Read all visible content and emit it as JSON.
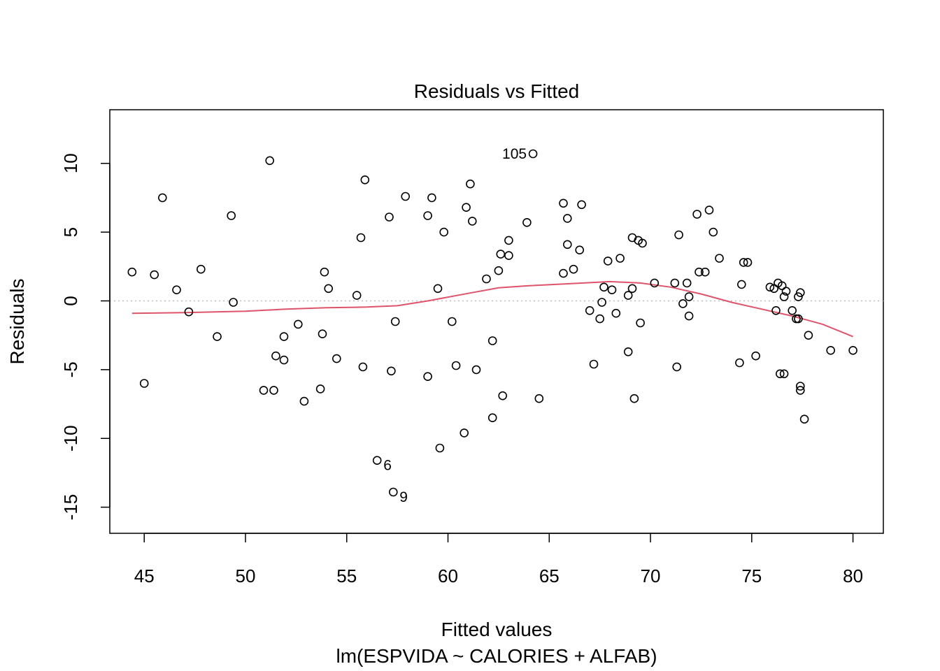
{
  "chart_data": {
    "type": "scatter",
    "title": "Residuals vs Fitted",
    "xlabel": "Fitted values",
    "ylabel": "Residuals",
    "subtitle": "lm(ESPVIDA ~ CALORIES + ALFAB)",
    "xlim": [
      43.3,
      81.5
    ],
    "ylim": [
      -16.9,
      13.9
    ],
    "x_ticks": [
      45,
      50,
      55,
      60,
      65,
      70,
      75,
      80
    ],
    "y_ticks": [
      -15,
      -10,
      -5,
      0,
      5,
      10
    ],
    "reference_line": {
      "y": 0,
      "style": "dotted",
      "color": "#bebebe"
    },
    "point_color": "#000000",
    "smooth_color": "#df536b",
    "points": [
      [
        44.4,
        2.1
      ],
      [
        45.0,
        -6.0
      ],
      [
        45.5,
        1.9
      ],
      [
        45.9,
        7.5
      ],
      [
        46.6,
        0.8
      ],
      [
        47.2,
        -0.8
      ],
      [
        47.8,
        2.3
      ],
      [
        48.6,
        -2.6
      ],
      [
        49.3,
        6.2
      ],
      [
        49.4,
        -0.1
      ],
      [
        50.9,
        -6.5
      ],
      [
        51.2,
        10.2
      ],
      [
        51.4,
        -6.5
      ],
      [
        51.5,
        -4.0
      ],
      [
        51.9,
        -4.3
      ],
      [
        51.9,
        -2.6
      ],
      [
        52.6,
        -1.7
      ],
      [
        52.9,
        -7.3
      ],
      [
        53.7,
        -6.4
      ],
      [
        53.8,
        -2.4
      ],
      [
        53.9,
        2.1
      ],
      [
        54.1,
        0.9
      ],
      [
        54.5,
        -4.2
      ],
      [
        55.5,
        0.4
      ],
      [
        55.7,
        4.6
      ],
      [
        55.8,
        -4.8
      ],
      [
        55.9,
        8.8
      ],
      [
        56.5,
        -11.6
      ],
      [
        57.1,
        6.1
      ],
      [
        57.2,
        -5.1
      ],
      [
        57.3,
        -13.9
      ],
      [
        57.4,
        -1.5
      ],
      [
        57.9,
        7.6
      ],
      [
        59.0,
        6.2
      ],
      [
        59.0,
        -5.5
      ],
      [
        59.2,
        7.5
      ],
      [
        59.5,
        0.9
      ],
      [
        59.6,
        -10.7
      ],
      [
        59.8,
        5.0
      ],
      [
        60.2,
        -1.5
      ],
      [
        60.4,
        -4.7
      ],
      [
        60.8,
        -9.6
      ],
      [
        60.9,
        6.8
      ],
      [
        61.1,
        8.5
      ],
      [
        61.2,
        5.8
      ],
      [
        61.4,
        -5.0
      ],
      [
        61.9,
        1.6
      ],
      [
        62.2,
        -2.9
      ],
      [
        62.2,
        -8.5
      ],
      [
        62.5,
        2.2
      ],
      [
        62.6,
        3.4
      ],
      [
        62.7,
        -6.9
      ],
      [
        63.0,
        4.4
      ],
      [
        63.0,
        3.3
      ],
      [
        63.9,
        5.7
      ],
      [
        64.2,
        10.7
      ],
      [
        64.5,
        -7.1
      ],
      [
        65.7,
        7.1
      ],
      [
        65.7,
        2.0
      ],
      [
        65.9,
        6.0
      ],
      [
        65.9,
        4.1
      ],
      [
        66.2,
        2.3
      ],
      [
        66.5,
        3.7
      ],
      [
        66.6,
        7.0
      ],
      [
        67.0,
        -0.7
      ],
      [
        67.2,
        -4.6
      ],
      [
        67.5,
        -1.3
      ],
      [
        67.6,
        -0.1
      ],
      [
        67.7,
        1.0
      ],
      [
        67.9,
        2.9
      ],
      [
        68.1,
        0.8
      ],
      [
        68.3,
        -0.9
      ],
      [
        68.5,
        3.1
      ],
      [
        68.9,
        0.4
      ],
      [
        68.9,
        -3.7
      ],
      [
        69.1,
        4.6
      ],
      [
        69.1,
        0.9
      ],
      [
        69.2,
        -7.1
      ],
      [
        69.4,
        4.4
      ],
      [
        69.5,
        -1.6
      ],
      [
        69.6,
        4.2
      ],
      [
        70.2,
        1.3
      ],
      [
        71.2,
        1.3
      ],
      [
        71.3,
        -4.8
      ],
      [
        71.4,
        4.8
      ],
      [
        71.6,
        -0.2
      ],
      [
        71.8,
        1.3
      ],
      [
        71.9,
        0.3
      ],
      [
        71.9,
        -1.1
      ],
      [
        72.3,
        6.3
      ],
      [
        72.4,
        2.1
      ],
      [
        72.7,
        2.1
      ],
      [
        72.9,
        6.6
      ],
      [
        73.1,
        5.0
      ],
      [
        73.4,
        3.1
      ],
      [
        74.4,
        -4.5
      ],
      [
        74.5,
        1.2
      ],
      [
        74.6,
        2.8
      ],
      [
        74.8,
        2.8
      ],
      [
        75.2,
        -4.0
      ],
      [
        75.9,
        1.0
      ],
      [
        76.1,
        0.9
      ],
      [
        76.2,
        -0.7
      ],
      [
        76.3,
        1.3
      ],
      [
        76.4,
        -5.3
      ],
      [
        76.5,
        1.1
      ],
      [
        76.6,
        -5.3
      ],
      [
        76.6,
        0.3
      ],
      [
        76.7,
        0.7
      ],
      [
        77.0,
        -0.7
      ],
      [
        77.2,
        -1.3
      ],
      [
        77.3,
        0.3
      ],
      [
        77.3,
        -1.3
      ],
      [
        77.4,
        0.6
      ],
      [
        77.4,
        -6.2
      ],
      [
        77.4,
        -6.5
      ],
      [
        77.6,
        -8.6
      ],
      [
        77.8,
        -2.5
      ],
      [
        78.9,
        -3.6
      ],
      [
        80.0,
        -3.6
      ]
    ],
    "labeled_points": [
      {
        "x": 64.2,
        "y": 10.7,
        "label": "105",
        "side": "left"
      },
      {
        "x": 56.5,
        "y": -11.6,
        "label": "6",
        "side": "right"
      },
      {
        "x": 57.3,
        "y": -13.9,
        "label": "9",
        "side": "right"
      }
    ],
    "smooth_line": [
      [
        44.4,
        -0.9
      ],
      [
        47.0,
        -0.85
      ],
      [
        50.0,
        -0.75
      ],
      [
        52.0,
        -0.6
      ],
      [
        54.0,
        -0.5
      ],
      [
        56.0,
        -0.45
      ],
      [
        57.5,
        -0.35
      ],
      [
        59.0,
        0.0
      ],
      [
        61.0,
        0.55
      ],
      [
        62.5,
        0.95
      ],
      [
        64.0,
        1.1
      ],
      [
        66.0,
        1.25
      ],
      [
        68.0,
        1.4
      ],
      [
        69.5,
        1.3
      ],
      [
        71.0,
        1.0
      ],
      [
        72.5,
        0.5
      ],
      [
        74.0,
        -0.1
      ],
      [
        75.5,
        -0.6
      ],
      [
        77.0,
        -1.1
      ],
      [
        78.5,
        -1.7
      ],
      [
        80.0,
        -2.6
      ]
    ]
  }
}
